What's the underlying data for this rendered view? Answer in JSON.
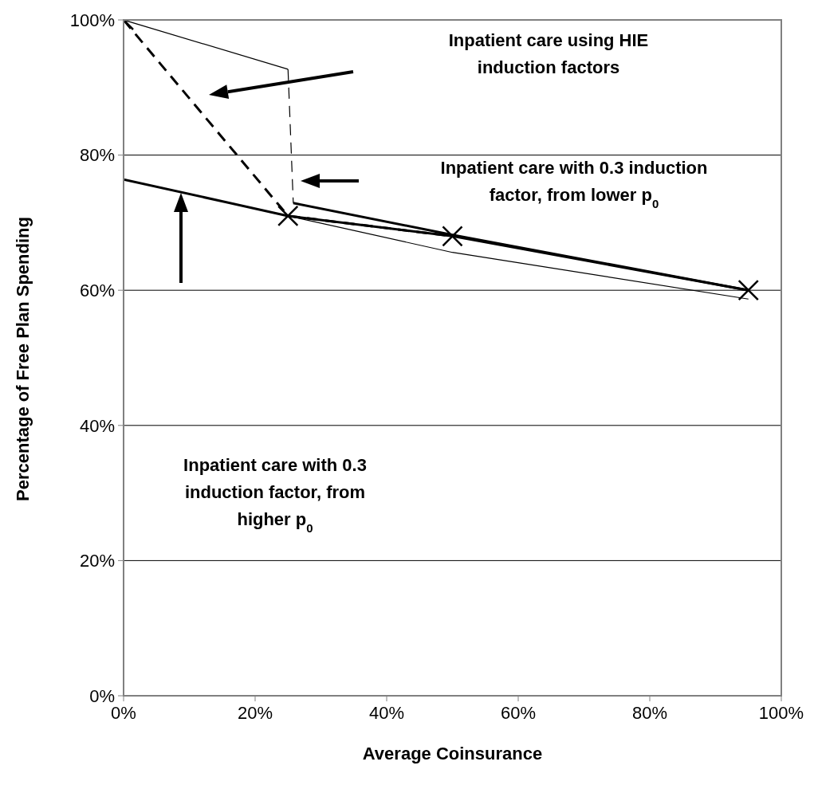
{
  "chart_data": {
    "type": "line",
    "xlabel": "Average Coinsurance",
    "ylabel": "Percentage of Free Plan Spending",
    "xlim": [
      0,
      100
    ],
    "ylim": [
      0,
      100
    ],
    "xticks": [
      {
        "value": 0,
        "label": "0%"
      },
      {
        "value": 20,
        "label": "20%"
      },
      {
        "value": 40,
        "label": "40%"
      },
      {
        "value": 60,
        "label": "60%"
      },
      {
        "value": 80,
        "label": "80%"
      },
      {
        "value": 100,
        "label": "100%"
      }
    ],
    "yticks": [
      {
        "value": 0,
        "label": "0%"
      },
      {
        "value": 20,
        "label": "20%"
      },
      {
        "value": 40,
        "label": "40%"
      },
      {
        "value": 60,
        "label": "60%"
      },
      {
        "value": 80,
        "label": "80%"
      },
      {
        "value": 100,
        "label": "100%"
      }
    ],
    "grid": "y",
    "series": [
      {
        "color": "#000000",
        "line_style": "dashed",
        "marker": "cross",
        "x": [
          0,
          25,
          50
        ],
        "values": [
          100,
          71,
          68
        ]
      },
      {
        "color": "#000000",
        "line_style": "solid",
        "x": [
          0,
          25,
          50,
          95
        ],
        "values": [
          76.4,
          71,
          68,
          60
        ]
      },
      {
        "color": "#000000",
        "line_style": "solid",
        "x": [
          25.8,
          50,
          95
        ],
        "values": [
          72.9,
          68.2,
          60
        ]
      },
      {
        "color": "#000000",
        "line_style": "solid",
        "x": [
          0,
          25
        ],
        "values": [
          100,
          92.7
        ]
      },
      {
        "color": "#000000",
        "line_style": "dashed",
        "x": [
          25,
          25.8
        ],
        "values": [
          92.7,
          72.9
        ]
      },
      {
        "color": "#000000",
        "line_style": "solid",
        "x": [
          25,
          50,
          95
        ],
        "values": [
          71,
          65.6,
          58.7
        ]
      },
      {
        "type": "scatter",
        "color": "#000000",
        "marker": "cross",
        "x": [
          95
        ],
        "values": [
          60
        ]
      }
    ],
    "annotations": [
      "Inpatient care using HIE induction factors",
      "Inpatient care with 0.3 induction factor, from lower p$_{0}$",
      "Inpatient care with 0.3 induction factor, from higher p$_{0}$"
    ]
  }
}
